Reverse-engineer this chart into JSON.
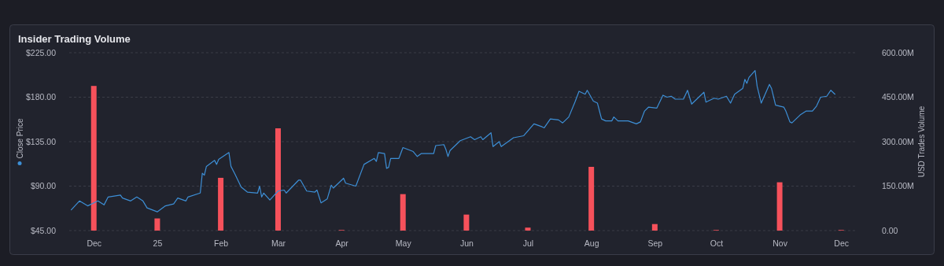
{
  "chart_data": {
    "type": "line",
    "title": "Insider Trading Volume",
    "y2label": "USD Trades Volume",
    "legend": "left",
    "grid": "y",
    "xlim": [
      "2024-11-19",
      "2025-12-09"
    ],
    "xticks": [
      {
        "value": "2024-12-01",
        "label": "Dec"
      },
      {
        "value": "2025-01-01",
        "label": "25"
      },
      {
        "value": "2025-02-01",
        "label": "Feb"
      },
      {
        "value": "2025-03-01",
        "label": "Mar"
      },
      {
        "value": "2025-04-01",
        "label": "Apr"
      },
      {
        "value": "2025-05-01",
        "label": "May"
      },
      {
        "value": "2025-06-01",
        "label": "Jun"
      },
      {
        "value": "2025-07-01",
        "label": "Jul"
      },
      {
        "value": "2025-08-01",
        "label": "Aug"
      },
      {
        "value": "2025-09-01",
        "label": "Sep"
      },
      {
        "value": "2025-10-01",
        "label": "Oct"
      },
      {
        "value": "2025-11-01",
        "label": "Nov"
      },
      {
        "value": "2025-12-01",
        "label": "Dec"
      }
    ],
    "ylim": [
      45,
      225
    ],
    "yticks": [
      {
        "value": 45,
        "label": "$45.00"
      },
      {
        "value": 90,
        "label": "$90.00"
      },
      {
        "value": 135,
        "label": "$135.00"
      },
      {
        "value": 180,
        "label": "$180.00"
      },
      {
        "value": 225,
        "label": "$225.00"
      }
    ],
    "y2lim": [
      0,
      600
    ],
    "y2ticks": [
      {
        "value": 0,
        "label": "0.00"
      },
      {
        "value": 150,
        "label": "150.00M"
      },
      {
        "value": 300,
        "label": "300.00M"
      },
      {
        "value": 450,
        "label": "450.00M"
      },
      {
        "value": 600,
        "label": "600.00M"
      }
    ],
    "series": [
      {
        "type": "bar",
        "axis": "y2",
        "color": "#f6515b",
        "x": [
          "2024-12-01",
          "2025-01-01",
          "2025-02-01",
          "2025-03-01",
          "2025-04-01",
          "2025-05-01",
          "2025-06-01",
          "2025-07-01",
          "2025-08-01",
          "2025-09-01",
          "2025-10-01",
          "2025-11-01",
          "2025-12-01"
        ],
        "values": [
          488,
          41,
          178,
          345,
          2,
          123,
          54,
          10,
          215,
          22,
          2,
          163,
          2
        ]
      },
      {
        "name": "Close Price",
        "color": "#3d8fd6",
        "x": [
          "2024-11-20",
          "2024-11-24",
          "2024-11-28",
          "2024-12-03",
          "2024-12-06",
          "2024-12-08",
          "2024-12-14",
          "2024-12-15",
          "2024-12-19",
          "2024-12-22",
          "2024-12-25",
          "2024-12-27",
          "2025-01-01",
          "2025-01-05",
          "2025-01-09",
          "2025-01-11",
          "2025-01-15",
          "2025-01-16",
          "2025-01-22",
          "2025-01-23",
          "2025-01-24",
          "2025-01-25",
          "2025-01-29",
          "2025-01-30",
          "2025-01-31",
          "2025-02-05",
          "2025-02-06",
          "2025-02-08",
          "2025-02-11",
          "2025-02-14",
          "2025-02-19",
          "2025-02-20",
          "2025-02-21",
          "2025-02-22",
          "2025-02-25",
          "2025-03-01",
          "2025-03-04",
          "2025-03-05",
          "2025-03-11",
          "2025-03-12",
          "2025-03-15",
          "2025-03-19",
          "2025-03-20",
          "2025-03-22",
          "2025-03-25",
          "2025-03-27",
          "2025-03-28",
          "2025-04-02",
          "2025-04-03",
          "2025-04-08",
          "2025-04-12",
          "2025-04-17",
          "2025-04-18",
          "2025-04-19",
          "2025-04-22",
          "2025-04-23",
          "2025-04-24",
          "2025-04-25",
          "2025-04-29",
          "2025-05-01",
          "2025-05-06",
          "2025-05-08",
          "2025-05-10",
          "2025-05-16",
          "2025-05-17",
          "2025-05-21",
          "2025-05-22",
          "2025-05-23",
          "2025-05-24",
          "2025-05-29",
          "2025-06-03",
          "2025-06-05",
          "2025-06-08",
          "2025-06-09",
          "2025-06-13",
          "2025-06-14",
          "2025-06-17",
          "2025-06-18",
          "2025-06-24",
          "2025-06-29",
          "2025-07-04",
          "2025-07-08",
          "2025-07-09",
          "2025-07-12",
          "2025-07-16",
          "2025-07-18",
          "2025-07-21",
          "2025-07-24",
          "2025-07-26",
          "2025-07-29",
          "2025-07-30",
          "2025-08-02",
          "2025-08-04",
          "2025-08-06",
          "2025-08-08",
          "2025-08-11",
          "2025-08-12",
          "2025-08-14",
          "2025-08-19",
          "2025-08-23",
          "2025-08-25",
          "2025-08-27",
          "2025-08-29",
          "2025-09-02",
          "2025-09-05",
          "2025-09-07",
          "2025-09-09",
          "2025-09-11",
          "2025-09-15",
          "2025-09-17",
          "2025-09-19",
          "2025-09-25",
          "2025-09-26",
          "2025-09-30",
          "2025-10-02",
          "2025-10-06",
          "2025-10-08",
          "2025-10-10",
          "2025-10-14",
          "2025-10-15",
          "2025-10-16",
          "2025-10-17",
          "2025-10-20",
          "2025-10-21",
          "2025-10-23",
          "2025-10-27",
          "2025-10-28",
          "2025-10-30",
          "2025-11-03",
          "2025-11-04",
          "2025-11-06",
          "2025-11-07",
          "2025-11-11",
          "2025-11-14",
          "2025-11-17",
          "2025-11-19",
          "2025-11-21",
          "2025-11-24",
          "2025-11-26",
          "2025-11-28"
        ],
        "values": [
          66,
          75,
          70,
          75,
          71,
          79,
          81,
          78,
          75,
          79,
          75,
          68,
          64,
          70,
          72,
          78,
          75,
          79,
          83,
          103,
          101,
          110,
          116,
          112,
          117,
          124,
          110,
          102,
          89,
          84,
          83,
          90,
          79,
          83,
          76,
          85,
          86,
          83,
          96,
          96,
          85,
          84,
          86,
          73,
          77,
          91,
          88,
          98,
          93,
          90,
          112,
          118,
          115,
          124,
          123,
          108,
          109,
          118,
          118,
          129,
          125,
          120,
          123,
          123,
          131,
          132,
          127,
          120,
          126,
          136,
          140,
          137,
          140,
          137,
          144,
          130,
          135,
          130,
          139,
          141,
          153,
          150,
          149,
          158,
          157,
          154,
          160,
          175,
          186,
          183,
          187,
          176,
          174,
          158,
          156,
          156,
          160,
          156,
          156,
          153,
          155,
          166,
          170,
          169,
          182,
          180,
          181,
          178,
          178,
          187,
          173,
          185,
          175,
          179,
          178,
          181,
          174,
          183,
          189,
          198,
          194,
          200,
          207,
          191,
          174,
          193,
          189,
          172,
          170,
          166,
          155,
          154,
          162,
          166,
          166,
          171,
          180,
          181,
          187,
          183
        ]
      }
    ]
  }
}
